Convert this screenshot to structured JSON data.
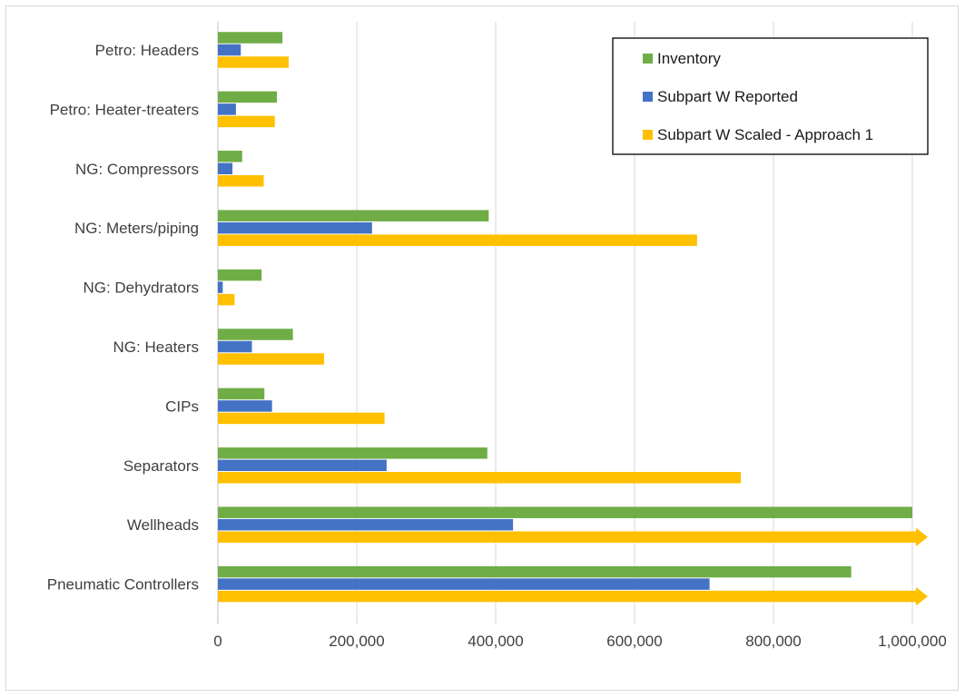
{
  "chart_data": {
    "type": "bar",
    "orientation": "horizontal",
    "categories": [
      "Petro: Headers",
      "Petro: Heater-treaters",
      "NG: Compressors",
      "NG: Meters/piping",
      "NG: Dehydrators",
      "NG: Heaters",
      "CIPs",
      "Separators",
      "Wellheads",
      "Pneumatic Controllers"
    ],
    "series": [
      {
        "name": "Inventory",
        "color": "#70ad47",
        "values": [
          93000,
          85000,
          35000,
          390000,
          63000,
          108000,
          67000,
          388000,
          1000000,
          912000
        ]
      },
      {
        "name": "Subpart W Reported",
        "color": "#4472c4",
        "values": [
          33000,
          26000,
          21000,
          222000,
          7000,
          49000,
          78000,
          243000,
          425000,
          708000
        ]
      },
      {
        "name": "Subpart W Scaled - Approach 1",
        "color": "#ffc000",
        "values": [
          102000,
          82000,
          66000,
          690000,
          24000,
          153000,
          240000,
          753000,
          1020000,
          1020000
        ],
        "truncated_beyond_axis": [
          false,
          false,
          false,
          false,
          false,
          false,
          false,
          false,
          true,
          true
        ]
      }
    ],
    "xlim": [
      0,
      1000000
    ],
    "xticks": [
      "0",
      "200,000",
      "400,000",
      "600,000",
      "800,000",
      "1,000,000"
    ],
    "xtick_values": [
      0,
      200000,
      400000,
      600000,
      800000,
      1000000
    ],
    "grid": "vertical",
    "legend_position": "top-right"
  }
}
